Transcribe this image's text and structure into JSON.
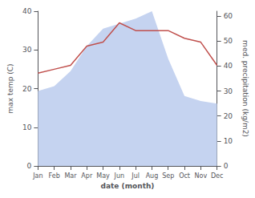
{
  "chart_data": {
    "type": "line",
    "xlabel": "date (month)",
    "ylabel": "max temp (C)",
    "y2label": "med. precipitation (kg/m2)",
    "categories": [
      "Jan",
      "Feb",
      "Mar",
      "Apr",
      "May",
      "Jun",
      "Jul",
      "Aug",
      "Sep",
      "Oct",
      "Nov",
      "Dec"
    ],
    "series": [
      {
        "type": "area",
        "axis": "y2",
        "color": "#c5d3f0",
        "values": [
          30,
          32,
          38,
          48,
          55,
          57,
          59,
          62,
          43,
          28,
          26,
          25
        ]
      },
      {
        "type": "line",
        "color": "#c0504d",
        "values": [
          24,
          25,
          26,
          31,
          32,
          37,
          35,
          35,
          35,
          33,
          32,
          26
        ]
      }
    ],
    "ylim": [
      0,
      40
    ],
    "yticks": [
      0,
      10,
      20,
      30,
      40
    ],
    "y2lim": [
      0,
      62
    ],
    "y2ticks": [
      0,
      10,
      20,
      30,
      40,
      50,
      60
    ],
    "grid": false
  }
}
